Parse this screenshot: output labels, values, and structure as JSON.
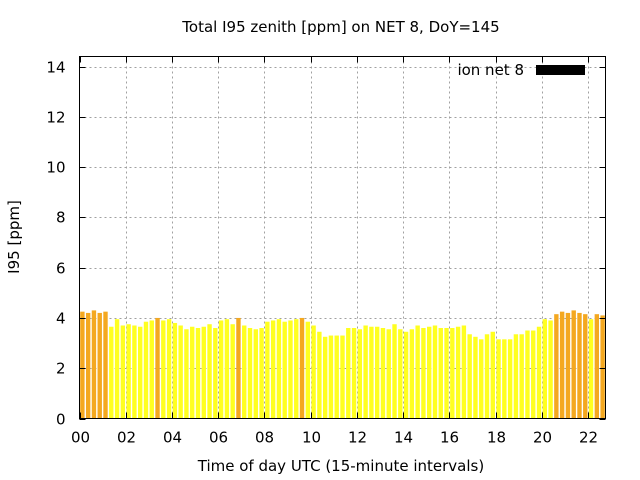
{
  "chart_data": {
    "type": "bar",
    "title": "Total I95 zenith [ppm] on NET 8, DoY=145",
    "xlabel": "Time of day UTC (15-minute intervals)",
    "ylabel": "I95 [ppm]",
    "xlim": [
      0,
      22.75
    ],
    "ylim": [
      0,
      14.4
    ],
    "interval_hours": 0.25,
    "x_ticks": [
      "00",
      "02",
      "04",
      "06",
      "08",
      "10",
      "12",
      "14",
      "16",
      "18",
      "20",
      "22"
    ],
    "y_ticks": [
      "0",
      "2",
      "4",
      "6",
      "8",
      "10",
      "12",
      "14"
    ],
    "grid": true,
    "legend": {
      "label": "ion net 8",
      "placement": "top-right",
      "color": "#000000"
    },
    "colors": {
      "normal": "#ffff20",
      "elevated": "#f4a820",
      "threshold": 4.0
    },
    "series": [
      {
        "name": "ion net 8",
        "values": [
          4.25,
          4.2,
          4.3,
          4.2,
          4.25,
          3.65,
          3.95,
          3.7,
          3.75,
          3.7,
          3.65,
          3.85,
          3.9,
          4.0,
          3.9,
          3.95,
          3.8,
          3.7,
          3.55,
          3.65,
          3.6,
          3.65,
          3.75,
          3.6,
          3.9,
          3.95,
          3.75,
          4.0,
          3.7,
          3.6,
          3.55,
          3.6,
          3.85,
          3.9,
          3.95,
          3.85,
          3.9,
          3.95,
          4.0,
          3.85,
          3.7,
          3.45,
          3.25,
          3.3,
          3.3,
          3.3,
          3.6,
          3.6,
          3.55,
          3.7,
          3.65,
          3.65,
          3.6,
          3.55,
          3.75,
          3.55,
          3.45,
          3.55,
          3.7,
          3.6,
          3.65,
          3.7,
          3.6,
          3.6,
          3.6,
          3.65,
          3.7,
          3.35,
          3.25,
          3.15,
          3.35,
          3.45,
          3.15,
          3.15,
          3.15,
          3.35,
          3.35,
          3.5,
          3.5,
          3.65,
          3.95,
          3.9,
          4.15,
          4.25,
          4.2,
          4.3,
          4.2,
          4.15,
          3.95,
          4.15,
          4.1
        ]
      }
    ]
  }
}
